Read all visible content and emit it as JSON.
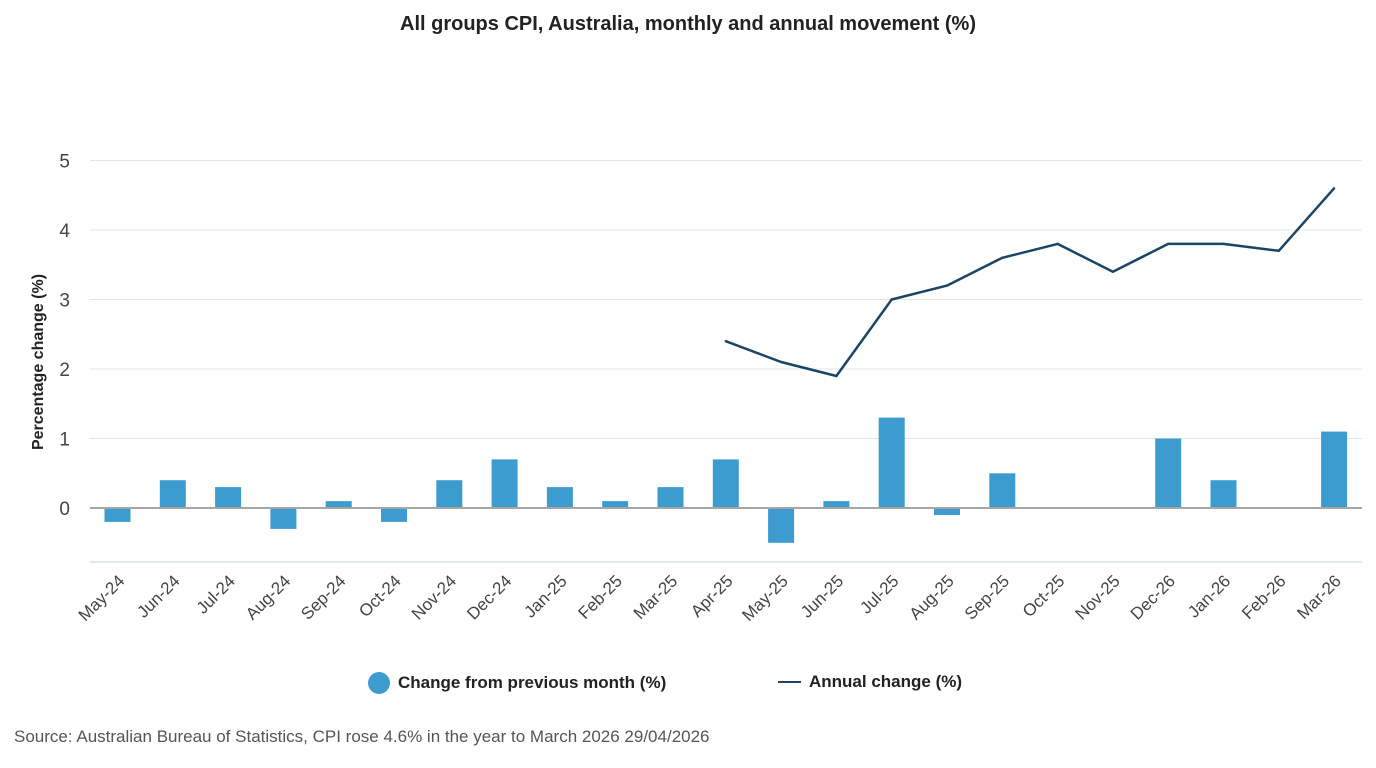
{
  "colors": {
    "bar": "#3d9ccf",
    "line": "#1b4566",
    "grid": "#e1e6ea",
    "zero_line": "#a6a6a6",
    "axis_text": "#444444"
  },
  "chart_data": {
    "type": "bar",
    "title": "All groups CPI, Australia, monthly and annual movement (%)",
    "ylabel": "Percentage change (%)",
    "xlabel": "",
    "ylim": [
      -0.8,
      5
    ],
    "yticks": [
      0,
      1,
      2,
      3,
      4,
      5
    ],
    "grid": true,
    "legend_position": "bottom",
    "categories": [
      "May-24",
      "Jun-24",
      "Jul-24",
      "Aug-24",
      "Sep-24",
      "Oct-24",
      "Nov-24",
      "Dec-24",
      "Jan-25",
      "Feb-25",
      "Mar-25",
      "Apr-25",
      "May-25",
      "Jun-25",
      "Jul-25",
      "Aug-25",
      "Sep-25",
      "Oct-25",
      "Nov-25",
      "Dec-26",
      "Jan-26",
      "Feb-26",
      "Mar-26"
    ],
    "series": [
      {
        "name": "Change from previous month (%)",
        "type": "bar",
        "values": [
          -0.2,
          0.4,
          0.3,
          -0.3,
          0.1,
          -0.2,
          0.4,
          0.7,
          0.3,
          0.1,
          0.3,
          0.7,
          -0.5,
          0.1,
          1.3,
          -0.1,
          0.5,
          0.0,
          0.0,
          1.0,
          0.4,
          0.0,
          1.1
        ]
      },
      {
        "name": "Annual change (%)",
        "type": "line",
        "values": [
          null,
          null,
          null,
          null,
          null,
          null,
          null,
          null,
          null,
          null,
          null,
          2.4,
          2.1,
          1.9,
          3.0,
          3.2,
          3.6,
          3.8,
          3.4,
          3.8,
          3.8,
          3.7,
          4.6
        ]
      }
    ]
  },
  "legend": {
    "bar_label": "Change from previous month (%)",
    "line_label": "Annual change (%)"
  },
  "source": "Source: Australian Bureau of Statistics, CPI rose 4.6% in the year to March 2026 29/04/2026"
}
